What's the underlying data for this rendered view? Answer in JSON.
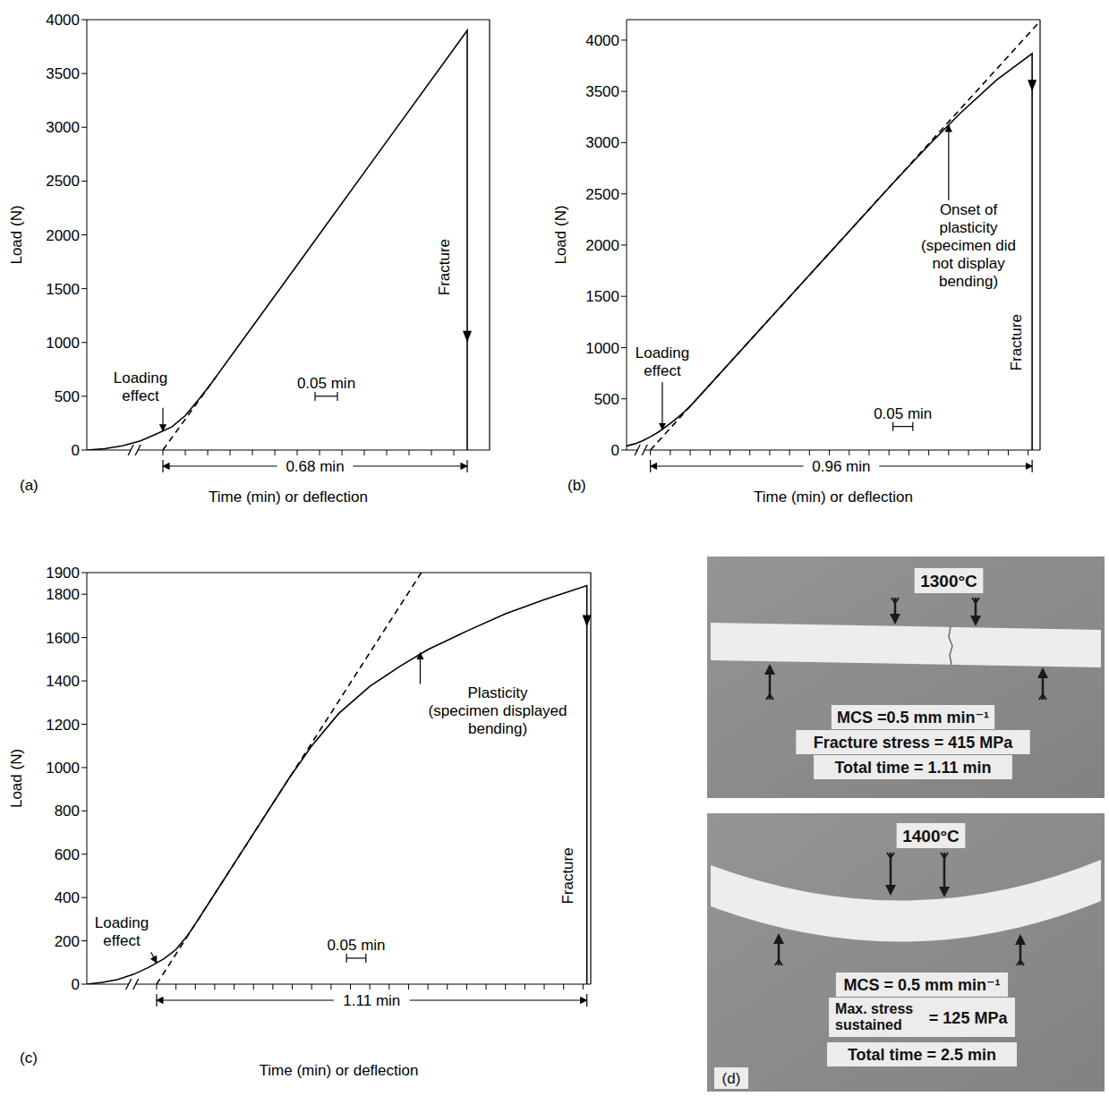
{
  "chart_data": [
    {
      "type": "line",
      "label": "(a)",
      "x_label": "Time (min) or deflection",
      "y_label": "Load (N)",
      "xlim": [
        -0.17,
        0.73
      ],
      "ylim": [
        0,
        4000
      ],
      "xticks": [
        0,
        0.05,
        0.1,
        0.15,
        0.2,
        0.25,
        0.3,
        0.35,
        0.4,
        0.45,
        0.5,
        0.55,
        0.6,
        0.65
      ],
      "yticks": [
        0,
        500,
        1000,
        1500,
        2000,
        2500,
        3000,
        3500,
        4000
      ],
      "tick_labels": "y",
      "grid": false,
      "series": [
        {
          "x": [
            -0.17,
            -0.13,
            -0.09,
            -0.05,
            -0.02,
            0.02,
            0.05,
            0.08,
            0.105,
            0.3,
            0.5,
            0.68,
            0.68
          ],
          "values": [
            0,
            12,
            40,
            85,
            140,
            215,
            320,
            470,
            602,
            1720,
            2868,
            3900,
            0
          ],
          "color": "#000000",
          "line_style": "solid"
        },
        {
          "x": [
            0,
            0.12
          ],
          "values": [
            0,
            688
          ],
          "color": "#000000",
          "line_style": "dashed"
        }
      ],
      "notes": [
        {
          "lines": [
            "Loading",
            "effect"
          ],
          "x": -0.05,
          "y": 620,
          "arrow_to": [
            0,
            177
          ]
        }
      ],
      "fracture": {
        "text": "Fracture",
        "x": 0.63,
        "y": 1700,
        "arrow_y": 1000
      },
      "span": {
        "text": "0.68 min",
        "x1": 0,
        "x2": 0.68
      },
      "scale_bar": {
        "text": "0.05 min",
        "x1": 0.34,
        "x2": 0.39,
        "y": 500
      }
    },
    {
      "type": "line",
      "label": "(b)",
      "x_label": "Time (min) or deflection",
      "y_label": "Load (N)",
      "xlim": [
        -0.06,
        0.98
      ],
      "ylim": [
        0,
        4200
      ],
      "xticks": [
        0,
        0.05,
        0.1,
        0.15,
        0.2,
        0.25,
        0.3,
        0.35,
        0.4,
        0.45,
        0.5,
        0.55,
        0.6,
        0.65,
        0.7,
        0.75,
        0.8,
        0.85,
        0.9,
        0.95
      ],
      "yticks": [
        0,
        500,
        1000,
        1500,
        2000,
        2500,
        3000,
        3500,
        4000
      ],
      "tick_labels": "y",
      "grid": false,
      "series": [
        {
          "x": [
            -0.06,
            -0.04,
            -0.02,
            0,
            0.02,
            0.04,
            0.06,
            0.08,
            0.1,
            0.3,
            0.61,
            0.7,
            0.78,
            0.87,
            0.96,
            0.96
          ],
          "values": [
            40,
            60,
            90,
            130,
            175,
            230,
            290,
            355,
            427,
            1281,
            2605,
            2975,
            3290,
            3610,
            3870,
            0
          ],
          "color": "#000000",
          "line_style": "solid"
        },
        {
          "x": [
            0,
            0.98
          ],
          "values": [
            0,
            4185
          ],
          "color": "#000000",
          "line_style": "dashed"
        }
      ],
      "notes": [
        {
          "lines": [
            "Loading",
            "effect"
          ],
          "x": 0.03,
          "y": 900,
          "arrow_to": [
            0.03,
            200
          ]
        },
        {
          "lines": [
            "Onset of",
            "plasticity",
            "(specimen did",
            "not display",
            "bending)"
          ],
          "x": 0.8,
          "y": 2300,
          "arrow_to": [
            0.75,
            3170
          ]
        }
      ],
      "fracture": {
        "text": "Fracture",
        "x": 0.92,
        "y": 1050,
        "arrow_y": 3500
      },
      "span": {
        "text": "0.96 min",
        "x1": 0,
        "x2": 0.96
      },
      "scale_bar": {
        "text": "0.05 min",
        "x1": 0.61,
        "x2": 0.66,
        "y": 230
      }
    },
    {
      "type": "line",
      "label": "(c)",
      "x_label": "Time (min) or deflection",
      "y_label": "Load (N)",
      "xlim": [
        -0.18,
        1.12
      ],
      "ylim": [
        0,
        1900
      ],
      "xticks": [
        0,
        0.05,
        0.1,
        0.15,
        0.2,
        0.25,
        0.3,
        0.35,
        0.4,
        0.45,
        0.5,
        0.55,
        0.6,
        0.65,
        0.7,
        0.75,
        0.8,
        0.85,
        0.9,
        0.95,
        1,
        1.05,
        1.1
      ],
      "yticks": [
        0,
        200,
        400,
        600,
        800,
        1000,
        1200,
        1400,
        1600,
        1800,
        1900
      ],
      "tick_labels": "y",
      "grid": false,
      "series": [
        {
          "x": [
            -0.18,
            -0.14,
            -0.1,
            -0.06,
            -0.02,
            0.02,
            0.05,
            0.08,
            0.108,
            0.34,
            0.4,
            0.47,
            0.55,
            0.63,
            0.7,
            0.8,
            0.9,
            1,
            1.11,
            1.11
          ],
          "values": [
            0,
            8,
            22,
            45,
            78,
            118,
            160,
            225,
            300,
            946,
            1100,
            1250,
            1375,
            1470,
            1545,
            1630,
            1710,
            1775,
            1840,
            0
          ],
          "color": "#000000",
          "line_style": "solid"
        },
        {
          "x": [
            0,
            0.683
          ],
          "values": [
            0,
            1900
          ],
          "color": "#000000",
          "line_style": "dashed"
        }
      ],
      "notes": [
        {
          "lines": [
            "Loading",
            "effect"
          ],
          "x": -0.09,
          "y": 260,
          "arrow_to": [
            0,
            98
          ]
        },
        {
          "lines": [
            "Plasticity",
            "(specimen displayed",
            "bending)"
          ],
          "x": 0.88,
          "y": 1320,
          "arrow_to": [
            0.68,
            1530
          ]
        }
      ],
      "fracture": {
        "text": "Fracture",
        "x": 1.06,
        "y": 500,
        "arrow_y": 1650
      },
      "span": {
        "text": "1.11 min",
        "x1": 0,
        "x2": 1.11
      },
      "scale_bar": {
        "text": "0.05 min",
        "x1": 0.49,
        "x2": 0.54,
        "y": 120
      }
    }
  ],
  "photo_panel": {
    "label": "(d)",
    "photos": [
      {
        "temperature": "1300°C",
        "mcs": "MCS =0.5 mm min⁻¹",
        "stress_label_lines": [
          "Fracture stress"
        ],
        "stress_value": "= 415 MPa",
        "total_time": "Total time = 1.11 min"
      },
      {
        "temperature": "1400°C",
        "mcs": "MCS = 0.5 mm min⁻¹",
        "stress_label_lines": [
          "Max. stress",
          "sustained"
        ],
        "stress_value": "= 125 MPa",
        "total_time": "Total time = 2.5 min"
      }
    ]
  }
}
